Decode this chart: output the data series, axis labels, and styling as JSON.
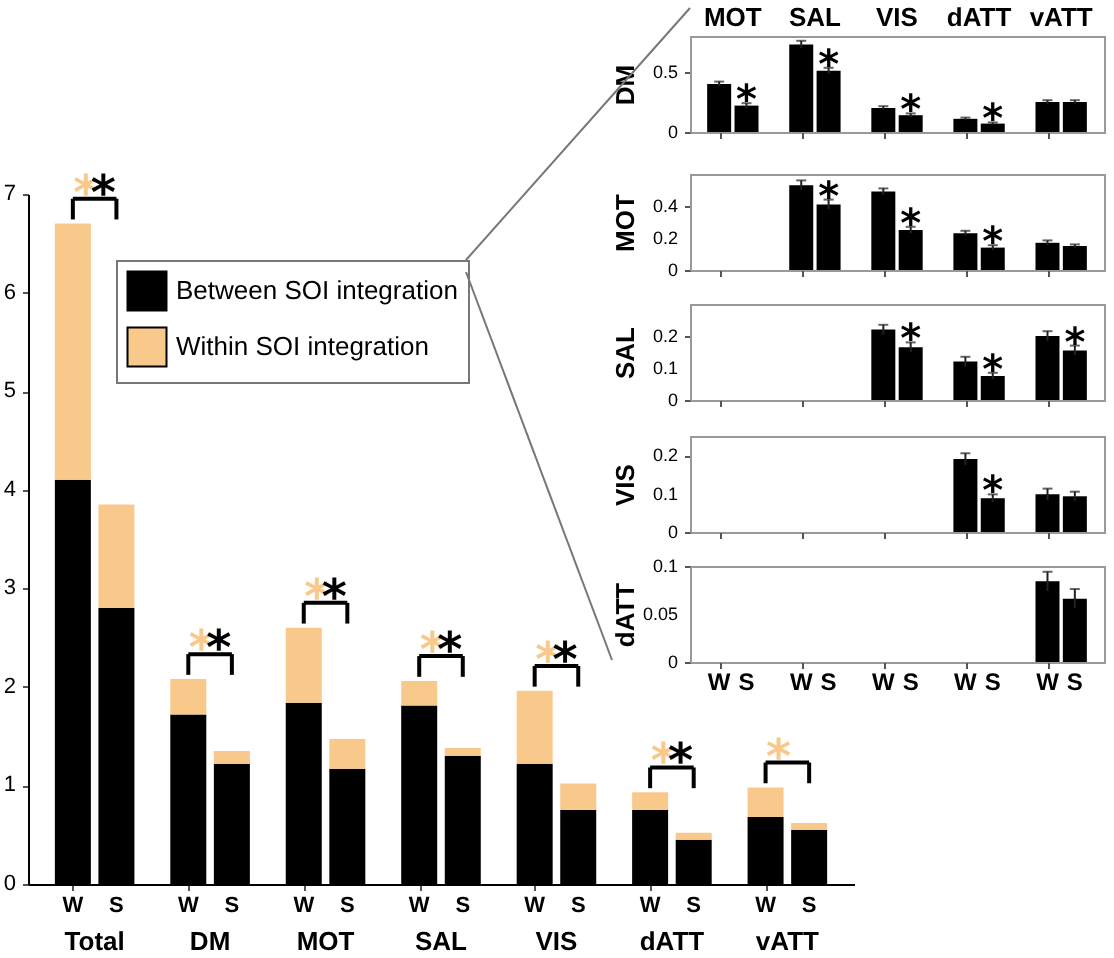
{
  "chart_data": [
    {
      "type": "bar",
      "stacked": true,
      "categories": [
        "W",
        "S",
        "W",
        "S",
        "W",
        "S",
        "W",
        "S",
        "W",
        "S",
        "W",
        "S",
        "W",
        "S"
      ],
      "series": [
        {
          "name": "Between SOI integration",
          "color": "#000000",
          "values": [
            4.1,
            2.8,
            1.72,
            1.22,
            1.84,
            1.17,
            1.81,
            1.3,
            1.22,
            0.75,
            0.75,
            0.45,
            0.68,
            0.55
          ]
        },
        {
          "name": "Within SOI integration",
          "color": "#f9c98c",
          "values": [
            2.6,
            1.05,
            0.36,
            0.13,
            0.76,
            0.3,
            0.25,
            0.08,
            0.74,
            0.27,
            0.18,
            0.07,
            0.3,
            0.07
          ]
        }
      ],
      "ylim": [
        0,
        7
      ],
      "yticks": [
        0,
        1,
        2,
        3,
        4,
        5,
        6,
        7
      ],
      "legend": "top left",
      "annotations": [
        "Total",
        "DM",
        "MOT",
        "SAL",
        "VIS",
        "dATT",
        "vATT",
        "*",
        "*",
        "*",
        "*",
        "*",
        "*",
        "*",
        "*",
        "*",
        "*",
        "*",
        "*",
        "*"
      ]
    },
    {
      "type": "bar",
      "ylabel": "DM",
      "categories": [
        null,
        null,
        null,
        null,
        null,
        null,
        null,
        null,
        null,
        null
      ],
      "series": [
        {
          "color": "#000000",
          "values": [
            0.4,
            0.22,
            0.73,
            0.51,
            0.2,
            0.14,
            0.11,
            0.07,
            0.25,
            0.25
          ],
          "errors": [
            0.02,
            0.02,
            0.03,
            0.025,
            0.015,
            0.015,
            0.01,
            0.01,
            0.015,
            0.015
          ]
        }
      ],
      "ylim": [
        0,
        0.8
      ],
      "yticks": [
        0,
        0.5
      ],
      "tick_labels": "y",
      "annotations": [
        "MOT",
        "SAL",
        "VIS",
        "dATT",
        "vATT",
        "*",
        "*",
        "*",
        "*"
      ]
    },
    {
      "type": "bar",
      "ylabel": "MOT",
      "categories": [
        null,
        null,
        null,
        null,
        null,
        null,
        null,
        null,
        null,
        null
      ],
      "series": [
        {
          "color": "#000000",
          "values": [
            0,
            0,
            0.53,
            0.41,
            0.49,
            0.25,
            0.23,
            0.14,
            0.17,
            0.15
          ],
          "errors": [
            null,
            null,
            0.03,
            0.03,
            0.02,
            0.02,
            0.015,
            0.015,
            0.015,
            0.01
          ]
        }
      ],
      "ylim": [
        0,
        0.6
      ],
      "yticks": [
        0,
        0.2,
        0.4
      ],
      "tick_labels": "y",
      "annotations": [
        "*",
        "*",
        "*"
      ]
    },
    {
      "type": "bar",
      "ylabel": "SAL",
      "categories": [
        null,
        null,
        null,
        null,
        null,
        null,
        null,
        null,
        null,
        null
      ],
      "series": [
        {
          "color": "#000000",
          "values": [
            0,
            0,
            0,
            0,
            0.22,
            0.165,
            0.12,
            0.075,
            0.2,
            0.155
          ],
          "errors": [
            null,
            null,
            null,
            null,
            0.015,
            0.015,
            0.015,
            0.01,
            0.015,
            0.015
          ]
        }
      ],
      "ylim": [
        0,
        0.3
      ],
      "yticks": [
        0,
        0.1,
        0.2
      ],
      "tick_labels": "y",
      "annotations": [
        "*",
        "*",
        "*"
      ]
    },
    {
      "type": "bar",
      "ylabel": "VIS",
      "categories": [
        null,
        null,
        null,
        null,
        null,
        null,
        null,
        null,
        null,
        null
      ],
      "series": [
        {
          "color": "#000000",
          "values": [
            0,
            0,
            0,
            0,
            0,
            0,
            0.19,
            0.088,
            0.098,
            0.093
          ],
          "errors": [
            null,
            null,
            null,
            null,
            null,
            null,
            0.015,
            0.01,
            0.015,
            0.012
          ]
        }
      ],
      "ylim": [
        0,
        0.25
      ],
      "yticks": [
        0,
        0.1,
        0.2
      ],
      "tick_labels": "y",
      "annotations": [
        "*"
      ]
    },
    {
      "type": "bar",
      "ylabel": "dATT",
      "categories": [
        "W",
        "S",
        "W",
        "S",
        "W",
        "S",
        "W",
        "S",
        "W",
        "S"
      ],
      "series": [
        {
          "color": "#000000",
          "values": [
            0,
            0,
            0,
            0,
            0,
            0,
            0,
            0,
            0.084,
            0.066
          ],
          "errors": [
            null,
            null,
            null,
            null,
            null,
            null,
            null,
            null,
            0.01,
            0.01
          ]
        }
      ],
      "ylim": [
        0,
        0.1
      ],
      "yticks": [
        0,
        0.05,
        0.1
      ]
    }
  ]
}
